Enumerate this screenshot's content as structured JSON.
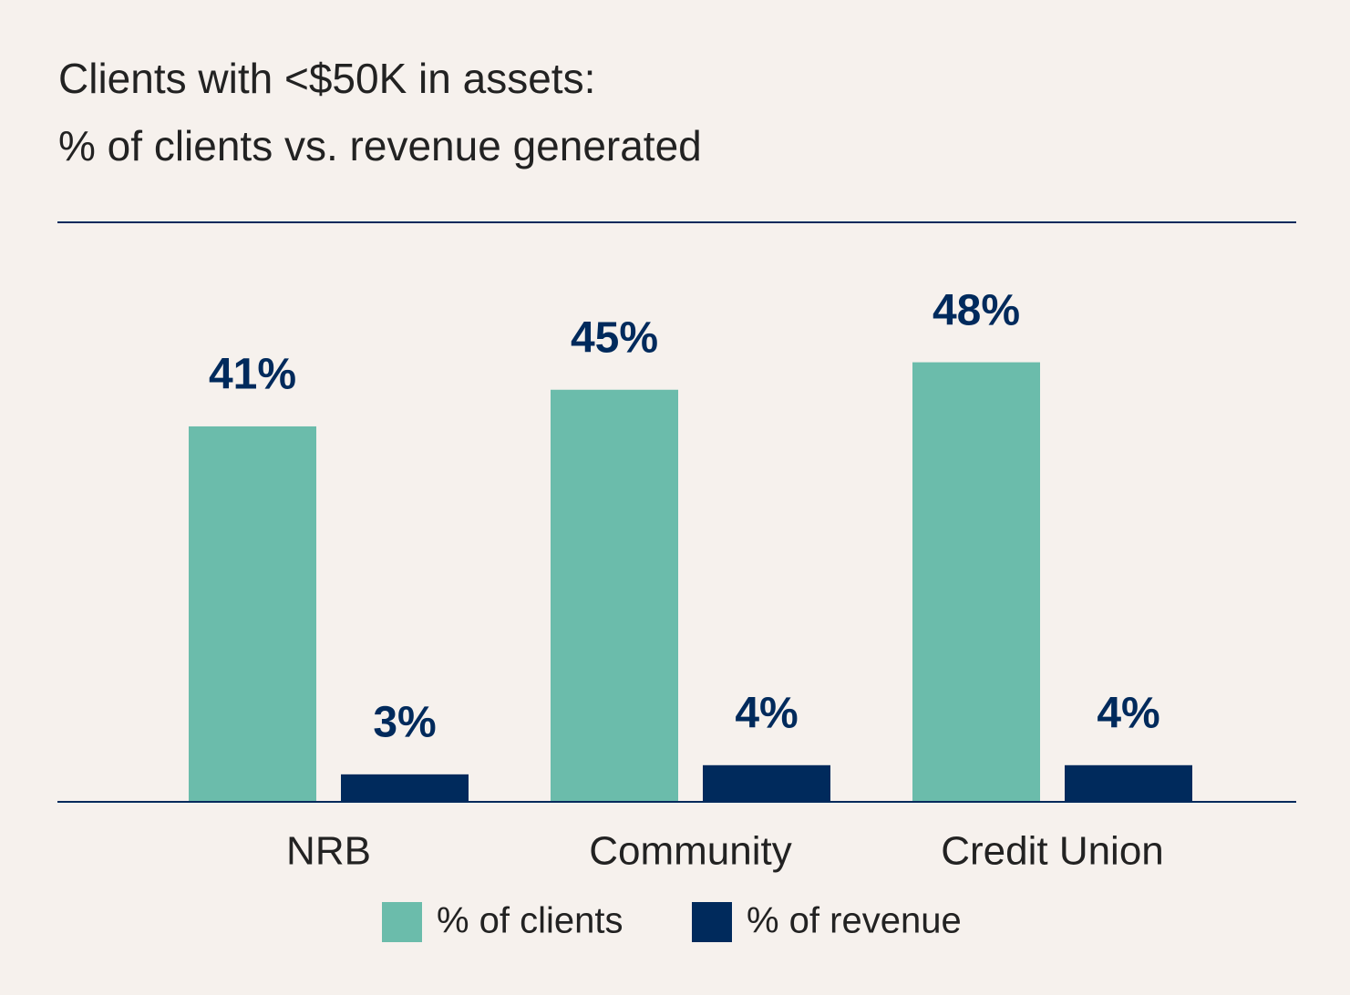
{
  "chart_data": {
    "type": "bar",
    "title": "Clients with <$50K in assets:",
    "subtitle": "% of clients vs. revenue generated",
    "categories": [
      "NRB",
      "Community",
      "Credit Union"
    ],
    "series": [
      {
        "name": "% of clients",
        "color": "#6bbcab",
        "values": [
          41,
          45,
          48
        ],
        "value_labels": [
          "41%",
          "45%",
          "48%"
        ]
      },
      {
        "name": "% of revenue",
        "color": "#002a5c",
        "values": [
          3,
          4,
          4
        ],
        "value_labels": [
          "3%",
          "4%",
          "4%"
        ]
      }
    ],
    "legend": "bottom"
  }
}
